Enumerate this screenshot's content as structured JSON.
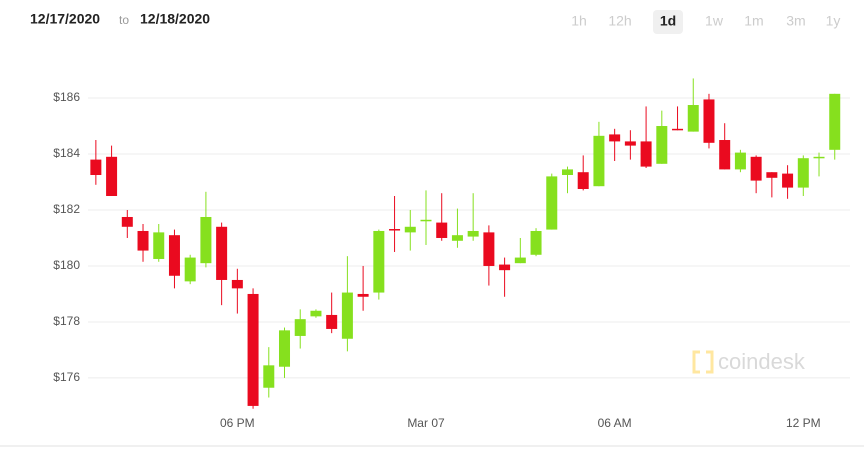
{
  "header": {
    "from": "12/17/2020",
    "separator": "to",
    "to": "12/18/2020",
    "ranges": [
      "1h",
      "12h",
      "1d",
      "1w",
      "1m",
      "3m",
      "1y"
    ],
    "selected": 2
  },
  "chart_data": {
    "type": "candlestick",
    "watermark": "coindesk",
    "x": [
      null,
      null,
      null,
      null,
      null,
      null,
      null,
      null,
      null,
      "06 PM",
      null,
      null,
      null,
      null,
      null,
      null,
      null,
      null,
      null,
      null,
      null,
      "Mar 07",
      null,
      null,
      null,
      null,
      null,
      null,
      null,
      null,
      null,
      null,
      null,
      "06 AM",
      null,
      null,
      null,
      null,
      null,
      null,
      null,
      null,
      null,
      null,
      null,
      "12 PM",
      null,
      null
    ],
    "open": [
      183.8,
      183.9,
      181.75,
      181.25,
      180.25,
      181.1,
      179.45,
      180.1,
      181.4,
      179.5,
      179.0,
      175.65,
      176.4,
      177.5,
      178.2,
      178.25,
      177.4,
      179.0,
      179.05,
      181.32,
      181.2,
      181.6,
      181.55,
      180.9,
      181.05,
      181.2,
      180.05,
      180.1,
      180.4,
      181.3,
      183.25,
      183.35,
      182.85,
      184.7,
      184.45,
      184.45,
      183.65,
      184.9,
      184.8,
      185.95,
      184.5,
      183.45,
      183.9,
      183.35,
      183.3,
      182.8,
      183.85,
      184.15
    ],
    "high": [
      184.5,
      184.3,
      182.0,
      181.5,
      181.5,
      181.3,
      180.4,
      182.65,
      181.55,
      179.9,
      179.2,
      177.1,
      177.8,
      178.45,
      178.45,
      179.05,
      180.35,
      180.0,
      181.3,
      182.5,
      182.0,
      182.7,
      182.6,
      182.05,
      182.6,
      181.45,
      180.3,
      181.0,
      181.35,
      183.3,
      183.55,
      183.95,
      185.15,
      184.9,
      184.85,
      185.7,
      185.55,
      185.7,
      186.7,
      186.15,
      185.1,
      184.15,
      183.95,
      183.35,
      183.6,
      183.95,
      184.05,
      186.15
    ],
    "low": [
      182.9,
      182.5,
      181.0,
      180.15,
      180.15,
      179.2,
      179.35,
      179.95,
      178.6,
      178.3,
      174.9,
      175.3,
      176.0,
      177.05,
      178.15,
      177.6,
      176.95,
      178.4,
      178.8,
      180.5,
      180.55,
      180.75,
      180.9,
      180.65,
      180.9,
      179.3,
      178.9,
      180.1,
      180.35,
      181.3,
      182.6,
      182.7,
      182.85,
      183.75,
      183.8,
      183.5,
      183.65,
      184.85,
      184.8,
      184.2,
      183.45,
      183.35,
      182.6,
      182.45,
      182.4,
      182.5,
      183.2,
      183.8
    ],
    "close": [
      183.25,
      182.5,
      181.4,
      180.55,
      181.2,
      179.65,
      180.3,
      181.75,
      179.5,
      179.2,
      175.0,
      176.45,
      177.7,
      178.1,
      178.4,
      177.75,
      179.05,
      178.9,
      181.25,
      181.28,
      181.4,
      181.65,
      181.0,
      181.1,
      181.25,
      180.0,
      179.85,
      180.3,
      181.25,
      183.2,
      183.45,
      182.75,
      184.65,
      184.45,
      184.3,
      183.55,
      185.0,
      184.85,
      185.75,
      184.4,
      183.45,
      184.05,
      183.05,
      183.15,
      182.8,
      183.85,
      183.9,
      186.15
    ],
    "up_color": "#86e01e",
    "down_color": "#ea0a1f",
    "ylim": [
      174.64,
      187.43
    ],
    "yticks": [
      {
        "value": 176,
        "label": "$176"
      },
      {
        "value": 178,
        "label": "$178"
      },
      {
        "value": 180,
        "label": "$180"
      },
      {
        "value": 182,
        "label": "$182"
      },
      {
        "value": 184,
        "label": "$184"
      },
      {
        "value": 186,
        "label": "$186"
      }
    ],
    "grid": true
  }
}
